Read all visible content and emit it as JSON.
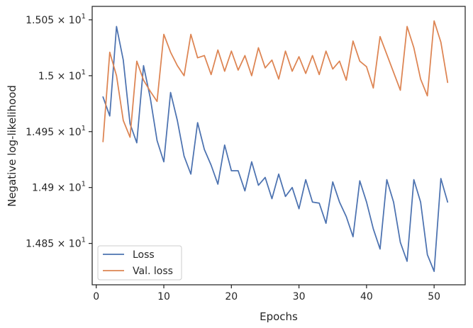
{
  "chart_data": {
    "type": "line",
    "xlabel": "Epochs",
    "ylabel": "Negative log-likelihood",
    "xlim": [
      -0.6,
      54.6
    ],
    "ylim": [
      14.813,
      15.062
    ],
    "xticks": [
      0,
      10,
      20,
      30,
      40,
      50
    ],
    "xtick_labels": [
      "0",
      "10",
      "20",
      "30",
      "40",
      "50"
    ],
    "yticks": [
      14.85,
      14.9,
      14.95,
      15.0,
      15.05
    ],
    "ytick_labels": [
      {
        "mantissa": "1.485",
        "base": "10",
        "exp": "1"
      },
      {
        "mantissa": "1.49",
        "base": "10",
        "exp": "1"
      },
      {
        "mantissa": "1.495",
        "base": "10",
        "exp": "1"
      },
      {
        "mantissa": "1.5",
        "base": "10",
        "exp": "1"
      },
      {
        "mantissa": "1.505",
        "base": "10",
        "exp": "1"
      }
    ],
    "grid": false,
    "legend_position": "lower-left",
    "x": [
      1,
      2,
      3,
      4,
      5,
      6,
      7,
      8,
      9,
      10,
      11,
      12,
      13,
      14,
      15,
      16,
      17,
      18,
      19,
      20,
      21,
      22,
      23,
      24,
      25,
      26,
      27,
      28,
      29,
      30,
      31,
      32,
      33,
      34,
      35,
      36,
      37,
      38,
      39,
      40,
      41,
      42,
      43,
      44,
      45,
      46,
      47,
      48,
      49,
      50,
      51,
      52
    ],
    "series": [
      {
        "name": "Loss",
        "color": "#4c72b0",
        "values": [
          14.981,
          14.964,
          15.044,
          15.014,
          14.957,
          14.94,
          15.009,
          14.98,
          14.942,
          14.923,
          14.985,
          14.96,
          14.928,
          14.912,
          14.958,
          14.934,
          14.92,
          14.903,
          14.938,
          14.915,
          14.915,
          14.897,
          14.923,
          14.902,
          14.909,
          14.89,
          14.912,
          14.892,
          14.9,
          14.881,
          14.907,
          14.887,
          14.886,
          14.868,
          14.905,
          14.887,
          14.874,
          14.856,
          14.906,
          14.887,
          14.863,
          14.845,
          14.907,
          14.887,
          14.851,
          14.834,
          14.907,
          14.887,
          14.84,
          14.825,
          14.908,
          14.887
        ]
      },
      {
        "name": "Val. loss",
        "color": "#dd8452",
        "values": [
          14.941,
          15.021,
          15.0,
          14.96,
          14.945,
          15.013,
          14.996,
          14.986,
          14.977,
          15.037,
          15.021,
          15.009,
          15.0,
          15.037,
          15.016,
          15.018,
          15.001,
          15.023,
          15.004,
          15.022,
          15.005,
          15.018,
          15.0,
          15.025,
          15.007,
          15.014,
          14.997,
          15.022,
          15.004,
          15.017,
          15.002,
          15.018,
          15.001,
          15.022,
          15.006,
          15.013,
          14.996,
          15.031,
          15.013,
          15.008,
          14.989,
          15.035,
          15.019,
          15.003,
          14.987,
          15.044,
          15.025,
          14.997,
          14.982,
          15.049,
          15.03,
          14.994
        ]
      }
    ]
  }
}
